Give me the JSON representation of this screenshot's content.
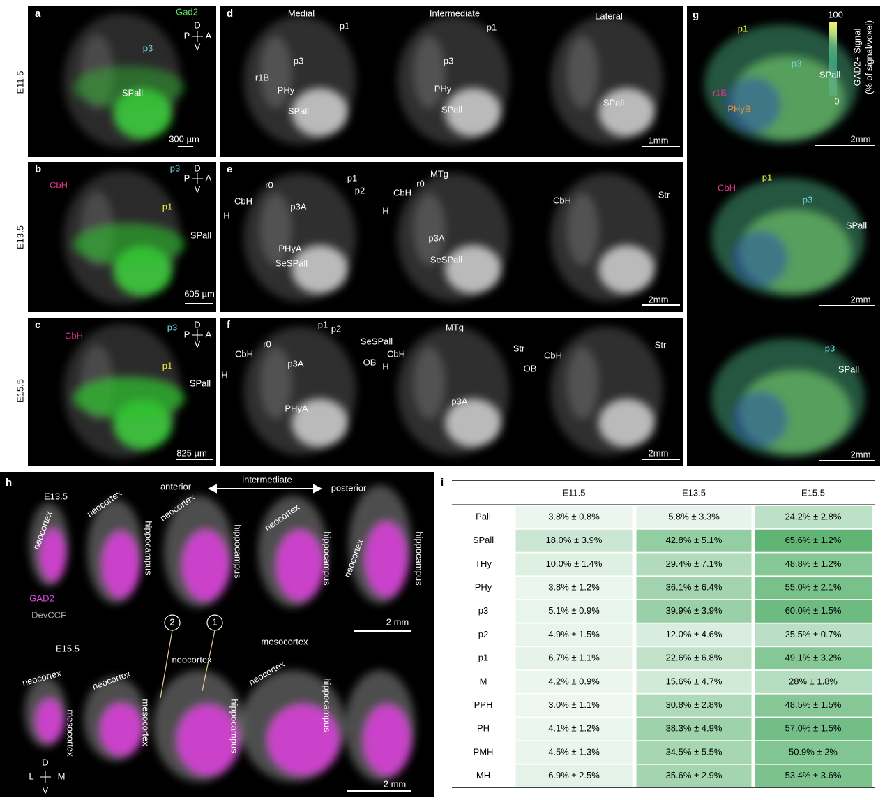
{
  "row_labels": [
    "E11.5",
    "E13.5",
    "E15.5"
  ],
  "panels": [
    {
      "letter": "a",
      "labels": [
        "Gad2",
        "D",
        "P",
        "A",
        "V",
        "p3",
        "SPall",
        "300 µm"
      ]
    },
    {
      "letter": "d",
      "labels": [
        "Medial",
        "Intermediate",
        "Lateral",
        "p1",
        "p3",
        "r1B",
        "PHy",
        "SPall",
        "p1",
        "p3",
        "PHy",
        "SPall",
        "SPall",
        "1mm"
      ]
    },
    {
      "letter": "g",
      "labels": [
        "100",
        "0",
        "GAD2+ Signal",
        "(% of signal/voxel)",
        "p1",
        "p3",
        "SPall",
        "r1B",
        "PHyB",
        "2mm",
        "CbH",
        "p1",
        "p3",
        "SPall",
        "2mm",
        "p3",
        "SPall",
        "2mm"
      ]
    },
    {
      "letter": "b",
      "labels": [
        "CbH",
        "p3",
        "D",
        "P",
        "A",
        "V",
        "p1",
        "SPall",
        "605 µm"
      ]
    },
    {
      "letter": "e",
      "labels": [
        "H",
        "CbH",
        "r0",
        "p1",
        "p2",
        "p3A",
        "PHyA",
        "SeSPall",
        "H",
        "CbH",
        "r0",
        "MTg",
        "p3A",
        "SeSPall",
        "CbH",
        "Str",
        "2mm"
      ]
    },
    {
      "letter": "c",
      "labels": [
        "CbH",
        "p3",
        "D",
        "P",
        "A",
        "V",
        "p1",
        "SPall",
        "825 µm"
      ]
    },
    {
      "letter": "f",
      "labels": [
        "H",
        "CbH",
        "r0",
        "p1",
        "p2",
        "p3A",
        "SeSPall",
        "OB",
        "PHyA",
        "H",
        "CbH",
        "MTg",
        "p3A",
        "Str",
        "OB",
        "CbH",
        "Str",
        "2mm"
      ]
    },
    {
      "letter": "h",
      "labels": [
        "E13.5",
        "anterior",
        "intermediate",
        "posterior",
        "neocortex",
        "neocortex",
        "hippocampus",
        "neocortex",
        "hippocampus",
        "neocortex",
        "hippocampus",
        "neocortex",
        "hippocampus",
        "GAD2",
        "DevCCF",
        "2 mm",
        "2",
        "1",
        "E15.5",
        "neocortex",
        "mesocortex",
        "neocortex",
        "mesocortex",
        "neocortex",
        "hippocampus",
        "mesocortex",
        "neocortex",
        "hippocampus",
        "D",
        "L",
        "M",
        "V",
        "2 mm"
      ]
    }
  ],
  "table": {
    "letter": "i",
    "header": [
      "E11.5",
      "E13.5",
      "E15.5"
    ],
    "rows": [
      [
        "Pall",
        "3.8% ± 0.8%",
        "5.8% ± 3.3%",
        "24.2% ± 2.8%"
      ],
      [
        "SPall",
        "18.0% ± 3.9%",
        "42.8% ± 5.1%",
        "65.6% ± 1.2%"
      ],
      [
        "THy",
        "10.0% ± 1.4%",
        "29.4% ± 7.1%",
        "48.8% ± 1.2%"
      ],
      [
        "PHy",
        "3.8% ± 1.2%",
        "36.1% ± 6.4%",
        "55.0% ± 2.1%"
      ],
      [
        "p3",
        "5.1% ± 0.9%",
        "39.9% ± 3.9%",
        "60.0% ± 1.5%"
      ],
      [
        "p2",
        "4.9% ± 1.5%",
        "12.0% ± 4.6%",
        "25.5% ± 0.7%"
      ],
      [
        "p1",
        "6.7% ± 1.1%",
        "22.6% ± 6.8%",
        "49.1% ± 3.2%"
      ],
      [
        "M",
        "4.2% ± 0.9%",
        "15.6% ± 4.7%",
        "28% ± 1.8%"
      ],
      [
        "PPH",
        "3.0% ± 1.1%",
        "30.8% ± 2.8%",
        "48.5% ± 1.5%"
      ],
      [
        "PH",
        "4.1% ± 1.2%",
        "38.3% ± 4.9%",
        "57.0% ± 1.5%"
      ],
      [
        "PMH",
        "4.5% ± 1.3%",
        "34.5% ± 5.5%",
        "50.9% ± 2%"
      ],
      [
        "MH",
        "6.9% ± 2.5%",
        "35.6% ± 2.9%",
        "53.4% ± 3.6%"
      ]
    ]
  }
}
